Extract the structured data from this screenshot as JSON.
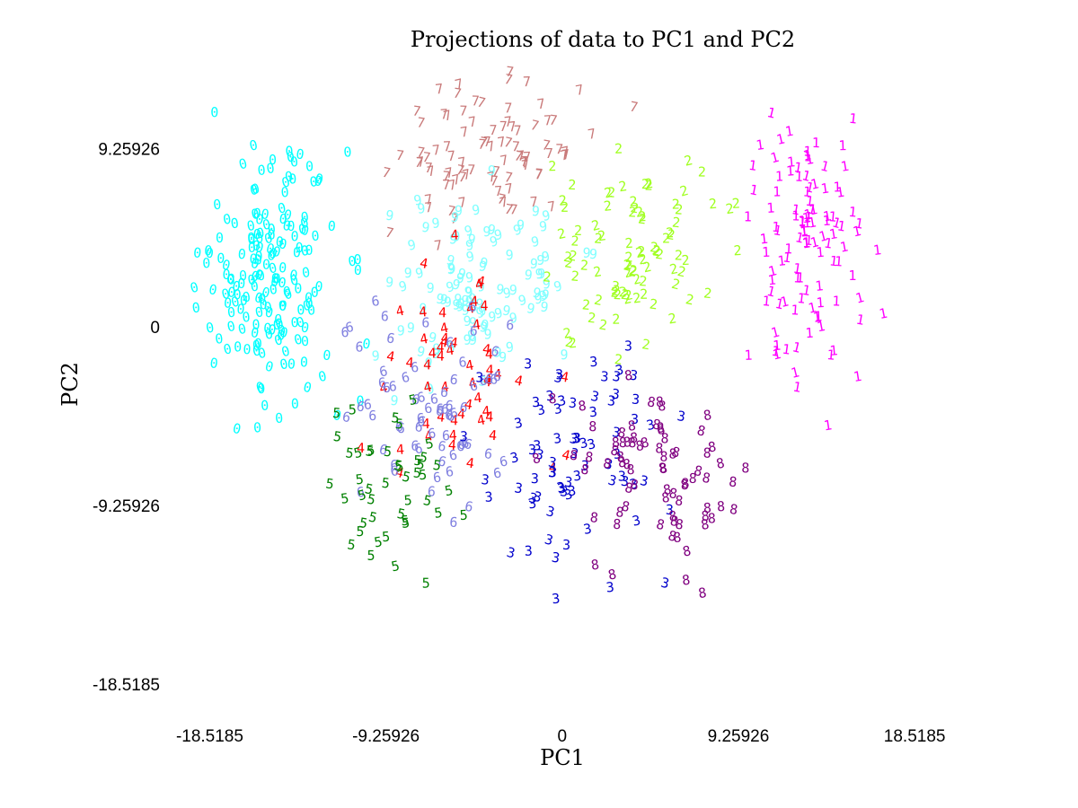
{
  "chart_data": {
    "type": "scatter",
    "title": "Projections of data to PC1 and PC2",
    "xlabel": "PC1",
    "ylabel": "PC2",
    "xlim": [
      -20.9,
      20.4
    ],
    "ylim": [
      -20.3,
      13.8
    ],
    "x_ticks": [
      -18.5185,
      -9.25926,
      0,
      9.25926,
      18.5185
    ],
    "x_tick_labels": [
      "-18.5185",
      "-9.25926",
      "0",
      "9.25926",
      "18.5185"
    ],
    "y_ticks": [
      -18.5185,
      -9.25926,
      0,
      9.25926
    ],
    "y_tick_labels": [
      "-18.5185",
      "-9.25926",
      "0",
      "9.25926"
    ],
    "grid": false,
    "marker": "digit glyphs",
    "series": [
      {
        "glyph": "0",
        "color": "#00ffff",
        "center": [
          -15.5,
          2.5
        ],
        "spread": [
          3.0,
          5.5
        ],
        "count": 180
      },
      {
        "glyph": "7",
        "color": "#c97a7a",
        "center": [
          -4.0,
          9.0
        ],
        "spread": [
          4.0,
          2.5
        ],
        "count": 90
      },
      {
        "glyph": "9",
        "color": "#80ffff",
        "center": [
          -4.5,
          2.0
        ],
        "spread": [
          4.0,
          4.0
        ],
        "count": 110
      },
      {
        "glyph": "4",
        "color": "#ff0000",
        "center": [
          -5.5,
          -3.0
        ],
        "spread": [
          3.5,
          4.5
        ],
        "count": 55
      },
      {
        "glyph": "6",
        "color": "#8080e0",
        "center": [
          -7.0,
          -5.0
        ],
        "spread": [
          3.5,
          4.0
        ],
        "count": 70
      },
      {
        "glyph": "5",
        "color": "#008000",
        "center": [
          -9.0,
          -8.5
        ],
        "spread": [
          3.0,
          4.0
        ],
        "count": 45
      },
      {
        "glyph": "2",
        "color": "#a0ff20",
        "center": [
          3.5,
          3.5
        ],
        "spread": [
          4.0,
          4.0
        ],
        "count": 90
      },
      {
        "glyph": "3",
        "color": "#0000cc",
        "center": [
          0.5,
          -7.0
        ],
        "spread": [
          4.0,
          5.0
        ],
        "count": 75
      },
      {
        "glyph": "8",
        "color": "#800080",
        "center": [
          5.0,
          -8.0
        ],
        "spread": [
          3.5,
          4.0
        ],
        "count": 75
      },
      {
        "glyph": "1",
        "color": "#ff00ff",
        "center": [
          13.0,
          4.0
        ],
        "spread": [
          2.5,
          5.5
        ],
        "count": 110
      }
    ]
  }
}
